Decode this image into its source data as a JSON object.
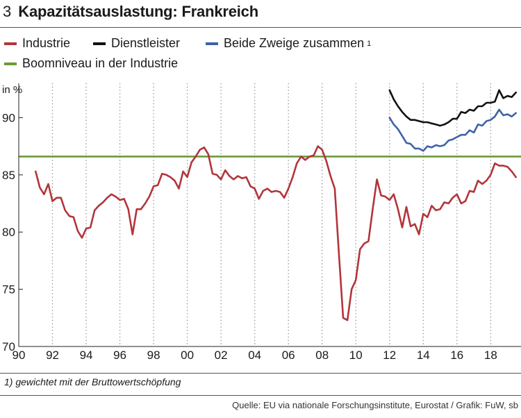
{
  "header": {
    "number": "3",
    "title": "Kapazitätsauslastung: Frankreich"
  },
  "legend": {
    "items": [
      {
        "label": "Industrie",
        "color": "#b2353a"
      },
      {
        "label": "Dienstleister",
        "color": "#111111"
      },
      {
        "label": "Beide Zweige zusammen",
        "color": "#3d63a8",
        "sup": "1"
      },
      {
        "label": "Boomniveau in der Industrie",
        "color": "#6a9a3a"
      }
    ]
  },
  "footnote": "1) gewichtet mit der Bruttowertschöpfung",
  "source": "Quelle: EU via nationale Forschungsinstitute, Eurostat / Grafik: FuW, sb",
  "chart_data": {
    "type": "line",
    "ylabel": "in %",
    "ylim": [
      70,
      93
    ],
    "xlim": [
      1990,
      2019.8
    ],
    "yticks": [
      70,
      75,
      80,
      85,
      90
    ],
    "xticks": [
      {
        "year": 1990,
        "label": "90"
      },
      {
        "year": 1992,
        "label": "92"
      },
      {
        "year": 1994,
        "label": "94"
      },
      {
        "year": 1996,
        "label": "96"
      },
      {
        "year": 1998,
        "label": "98"
      },
      {
        "year": 2000,
        "label": "00"
      },
      {
        "year": 2002,
        "label": "02"
      },
      {
        "year": 2004,
        "label": "04"
      },
      {
        "year": 2006,
        "label": "06"
      },
      {
        "year": 2008,
        "label": "08"
      },
      {
        "year": 2010,
        "label": "10"
      },
      {
        "year": 2012,
        "label": "12"
      },
      {
        "year": 2014,
        "label": "14"
      },
      {
        "year": 2016,
        "label": "16"
      },
      {
        "year": 2018,
        "label": "18"
      }
    ],
    "grid": "vertical dotted",
    "reference_line": {
      "value": 86.6
    },
    "series": [
      {
        "name": "Industrie",
        "x": [
          1991.0,
          1991.25,
          1991.5,
          1991.75,
          1992.0,
          1992.25,
          1992.5,
          1992.75,
          1993.0,
          1993.25,
          1993.5,
          1993.75,
          1994.0,
          1994.25,
          1994.5,
          1994.75,
          1995.0,
          1995.25,
          1995.5,
          1995.75,
          1996.0,
          1996.25,
          1996.5,
          1996.75,
          1997.0,
          1997.25,
          1997.5,
          1997.75,
          1998.0,
          1998.25,
          1998.5,
          1998.75,
          1999.0,
          1999.25,
          1999.5,
          1999.75,
          2000.0,
          2000.25,
          2000.5,
          2000.75,
          2001.0,
          2001.25,
          2001.5,
          2001.75,
          2002.0,
          2002.25,
          2002.5,
          2002.75,
          2003.0,
          2003.25,
          2003.5,
          2003.75,
          2004.0,
          2004.25,
          2004.5,
          2004.75,
          2005.0,
          2005.25,
          2005.5,
          2005.75,
          2006.0,
          2006.25,
          2006.5,
          2006.75,
          2007.0,
          2007.25,
          2007.5,
          2007.75,
          2008.0,
          2008.25,
          2008.5,
          2008.75,
          2009.0,
          2009.25,
          2009.5,
          2009.75,
          2010.0,
          2010.25,
          2010.5,
          2010.75,
          2011.0,
          2011.25,
          2011.5,
          2011.75,
          2012.0,
          2012.25,
          2012.5,
          2012.75,
          2013.0,
          2013.25,
          2013.5,
          2013.75,
          2014.0,
          2014.25,
          2014.5,
          2014.75,
          2015.0,
          2015.25,
          2015.5,
          2015.75,
          2016.0,
          2016.25,
          2016.5,
          2016.75,
          2017.0,
          2017.25,
          2017.5,
          2017.75,
          2018.0,
          2018.25,
          2018.5,
          2018.75,
          2019.0,
          2019.25,
          2019.5
        ],
        "values": [
          85.3,
          83.9,
          83.3,
          84.2,
          82.7,
          83.0,
          83.0,
          81.9,
          81.4,
          81.3,
          80.1,
          79.5,
          80.3,
          80.4,
          81.9,
          82.3,
          82.6,
          83.0,
          83.3,
          83.1,
          82.8,
          82.9,
          82.0,
          79.8,
          82.0,
          82.0,
          82.5,
          83.1,
          84.0,
          84.1,
          85.1,
          85.0,
          84.8,
          84.5,
          83.8,
          85.3,
          84.8,
          86.1,
          86.6,
          87.2,
          87.4,
          86.8,
          85.1,
          85.0,
          84.6,
          85.4,
          84.9,
          84.6,
          84.9,
          84.7,
          84.8,
          84.0,
          83.8,
          82.9,
          83.6,
          83.8,
          83.5,
          83.6,
          83.5,
          83.0,
          83.8,
          84.8,
          86.0,
          86.6,
          86.3,
          86.6,
          86.7,
          87.5,
          87.2,
          86.2,
          84.9,
          83.8,
          78.0,
          72.5,
          72.3,
          75.0,
          75.8,
          78.5,
          79.0,
          79.2,
          82.0,
          84.6,
          83.2,
          83.1,
          82.8,
          83.3,
          82.0,
          80.4,
          82.2,
          80.5,
          80.7,
          79.8,
          81.6,
          81.3,
          82.3,
          81.9,
          82.0,
          82.6,
          82.5,
          83.0,
          83.3,
          82.5,
          82.7,
          83.6,
          83.5,
          84.5,
          84.2,
          84.5,
          85.0,
          86.0,
          85.8,
          85.8,
          85.7,
          85.3,
          84.8
        ]
      },
      {
        "name": "Dienstleister",
        "x": [
          2012.0,
          2012.25,
          2012.5,
          2012.75,
          2013.0,
          2013.25,
          2013.5,
          2013.75,
          2014.0,
          2014.25,
          2014.5,
          2014.75,
          2015.0,
          2015.25,
          2015.5,
          2015.75,
          2016.0,
          2016.25,
          2016.5,
          2016.75,
          2017.0,
          2017.25,
          2017.5,
          2017.75,
          2018.0,
          2018.25,
          2018.5,
          2018.75,
          2019.0,
          2019.25,
          2019.5
        ],
        "values": [
          92.4,
          91.6,
          91.0,
          90.5,
          90.1,
          89.8,
          89.8,
          89.7,
          89.6,
          89.6,
          89.5,
          89.4,
          89.3,
          89.4,
          89.6,
          89.9,
          89.9,
          90.5,
          90.4,
          90.7,
          90.6,
          91.0,
          91.0,
          91.3,
          91.3,
          91.4,
          92.4,
          91.7,
          91.9,
          91.8,
          92.2
        ]
      },
      {
        "name": "Beide Zweige zusammen",
        "x": [
          2012.0,
          2012.25,
          2012.5,
          2012.75,
          2013.0,
          2013.25,
          2013.5,
          2013.75,
          2014.0,
          2014.25,
          2014.5,
          2014.75,
          2015.0,
          2015.25,
          2015.5,
          2015.75,
          2016.0,
          2016.25,
          2016.5,
          2016.75,
          2017.0,
          2017.25,
          2017.5,
          2017.75,
          2018.0,
          2018.25,
          2018.5,
          2018.75,
          2019.0,
          2019.25,
          2019.5
        ],
        "values": [
          90.0,
          89.4,
          89.0,
          88.4,
          87.8,
          87.7,
          87.3,
          87.3,
          87.1,
          87.5,
          87.4,
          87.6,
          87.5,
          87.6,
          88.0,
          88.1,
          88.3,
          88.5,
          88.5,
          88.9,
          88.7,
          89.4,
          89.3,
          89.7,
          89.8,
          90.1,
          90.7,
          90.2,
          90.3,
          90.1,
          90.4
        ]
      }
    ]
  }
}
